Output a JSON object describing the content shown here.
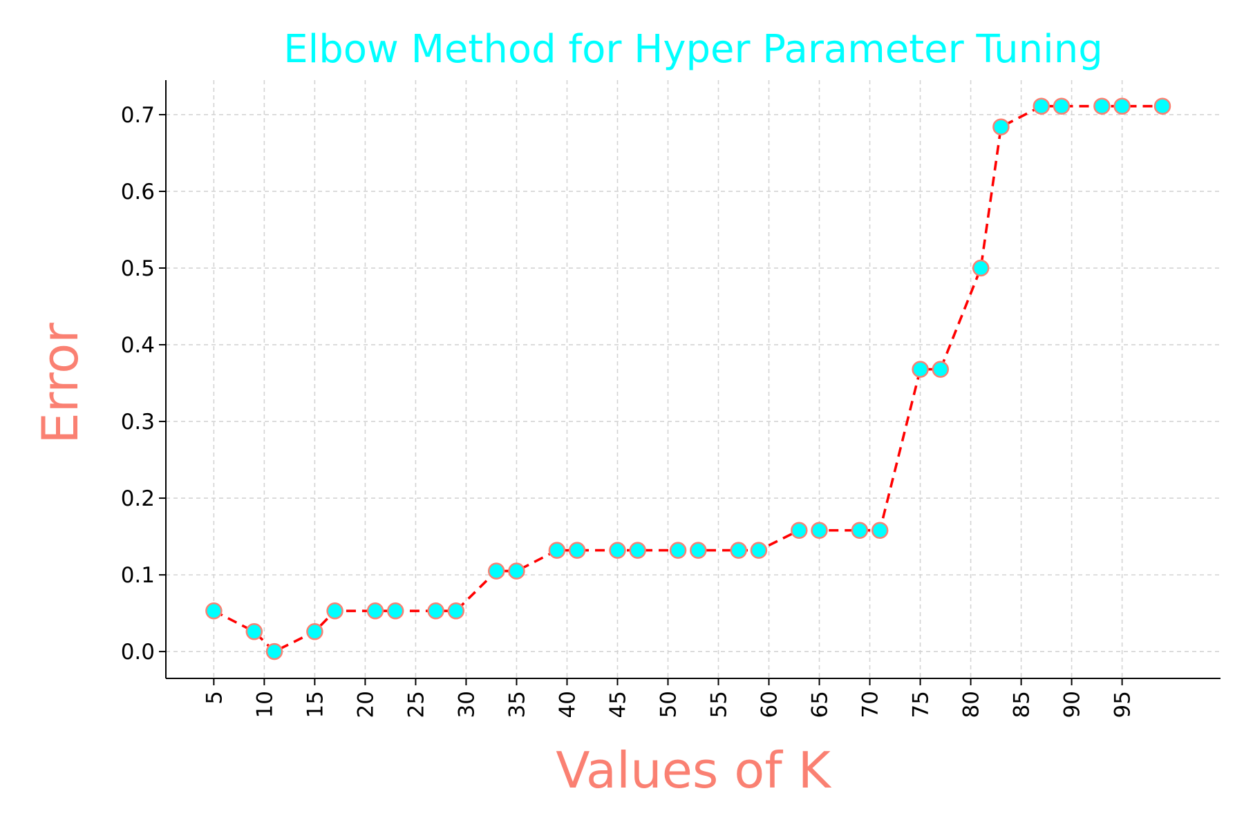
{
  "chart_data": {
    "type": "line",
    "title": "Elbow Method for Hyper Parameter Tuning",
    "xlabel": "Values of K",
    "ylabel": "Error",
    "xlim": [
      0.25,
      104.75
    ],
    "ylim": [
      -0.035,
      0.745
    ],
    "xticks": [
      5,
      10,
      15,
      20,
      25,
      30,
      35,
      40,
      45,
      50,
      55,
      60,
      65,
      70,
      75,
      80,
      85,
      90,
      95
    ],
    "yticks": [
      0.0,
      0.1,
      0.2,
      0.3,
      0.4,
      0.5,
      0.6,
      0.7
    ],
    "ytick_labels": [
      "0.0",
      "0.1",
      "0.2",
      "0.3",
      "0.4",
      "0.5",
      "0.6",
      "0.7"
    ],
    "grid": true,
    "colors": {
      "line": "#ff0000",
      "marker_face": "#00ffff",
      "marker_edge": "#fa8072",
      "title": "#00ffff",
      "axis_label": "#fa8072"
    },
    "x": [
      5,
      9,
      11,
      15,
      17,
      21,
      23,
      27,
      29,
      33,
      35,
      39,
      41,
      45,
      47,
      51,
      53,
      57,
      59,
      63,
      65,
      69,
      71,
      75,
      77,
      81,
      83,
      87,
      89,
      93,
      95,
      99
    ],
    "y": [
      0.053,
      0.026,
      0.0,
      0.026,
      0.053,
      0.053,
      0.053,
      0.053,
      0.053,
      0.105,
      0.105,
      0.132,
      0.132,
      0.132,
      0.132,
      0.132,
      0.132,
      0.132,
      0.132,
      0.158,
      0.158,
      0.158,
      0.158,
      0.368,
      0.368,
      0.5,
      0.684,
      0.711,
      0.711,
      0.711,
      0.711,
      0.711
    ]
  }
}
